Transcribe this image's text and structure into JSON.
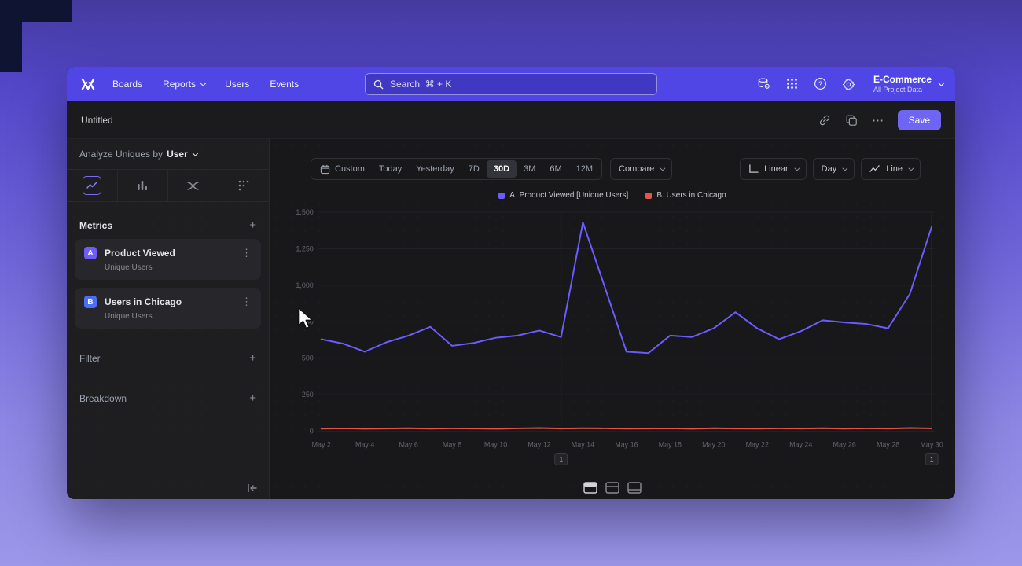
{
  "nav": {
    "items": [
      "Boards",
      "Reports",
      "Users",
      "Events"
    ],
    "search": {
      "placeholder": "Search  ⌘ + K"
    },
    "project": {
      "name": "E-Commerce",
      "subtitle": "All Project Data"
    }
  },
  "toolbar": {
    "title": "Untitled",
    "save_label": "Save"
  },
  "icons": {
    "kebab": "⋮",
    "more": "⋯",
    "plus": "+"
  },
  "sidebar": {
    "analyze_prefix": "Analyze Uniques by",
    "analyze_value": "User",
    "metrics_header": "Metrics",
    "metrics": {
      "items": [
        {
          "badge": "A",
          "name": "Product Viewed",
          "sub": "Unique Users",
          "color": "#6e5df6"
        },
        {
          "badge": "B",
          "name": "Users in Chicago",
          "sub": "Unique Users",
          "color": "#4c6ef5"
        }
      ]
    },
    "filter_label": "Filter",
    "breakdown_label": "Breakdown"
  },
  "controls": {
    "date_ranges": [
      "Custom",
      "Today",
      "Yesterday",
      "7D",
      "30D",
      "3M",
      "6M",
      "12M"
    ],
    "selected_range": "30D",
    "compare_label": "Compare",
    "scale_label": "Linear",
    "interval_label": "Day",
    "chart_type_label": "Line"
  },
  "chart_data": {
    "type": "line",
    "title": "",
    "xlabel": "",
    "ylabel": "",
    "ylim": [
      0,
      1500
    ],
    "yticks": [
      0,
      250,
      500,
      750,
      1000,
      1250,
      1500
    ],
    "grid": true,
    "legend_position": "top-center",
    "x": [
      "May 2",
      "May 3",
      "May 4",
      "May 5",
      "May 6",
      "May 7",
      "May 8",
      "May 9",
      "May 10",
      "May 11",
      "May 12",
      "May 13",
      "May 14",
      "May 15",
      "May 16",
      "May 17",
      "May 18",
      "May 19",
      "May 20",
      "May 21",
      "May 22",
      "May 23",
      "May 24",
      "May 25",
      "May 26",
      "May 27",
      "May 28",
      "May 29",
      "May 30"
    ],
    "x_tick_every": 2,
    "series": [
      {
        "name": "A. Product Viewed [Unique Users]",
        "color": "#6a5cff",
        "values": [
          630,
          600,
          545,
          610,
          655,
          715,
          585,
          605,
          640,
          655,
          690,
          645,
          1430,
          990,
          545,
          535,
          655,
          645,
          705,
          815,
          705,
          630,
          685,
          760,
          745,
          735,
          705,
          940,
          1400
        ]
      },
      {
        "name": "B. Users in Chicago",
        "color": "#e0564a",
        "values": [
          18,
          20,
          17,
          19,
          21,
          18,
          20,
          19,
          17,
          20,
          22,
          19,
          21,
          20,
          18,
          19,
          20,
          17,
          21,
          19,
          18,
          20,
          19,
          21,
          18,
          20,
          19,
          22,
          20
        ]
      }
    ],
    "annotations": [
      {
        "x_label": "May 13",
        "badge": "1"
      },
      {
        "x_label": "May 30",
        "badge": "1"
      }
    ]
  }
}
